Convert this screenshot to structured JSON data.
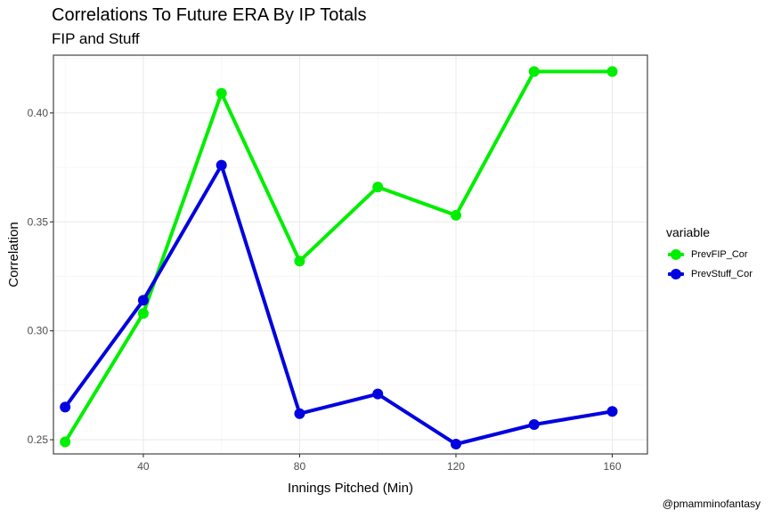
{
  "title": "Correlations To Future ERA By IP Totals",
  "subtitle": "FIP and Stuff",
  "caption": "@pmamminofantasy",
  "chart_data": {
    "type": "line",
    "title": "Correlations To Future ERA By IP Totals",
    "subtitle": "FIP and Stuff",
    "xlabel": "Innings Pitched (Min)",
    "ylabel": "Correlation",
    "x": [
      20,
      40,
      60,
      80,
      100,
      120,
      140,
      160
    ],
    "xlim": [
      17,
      169
    ],
    "ylim": [
      0.2435,
      0.4265
    ],
    "xticks": [
      40,
      80,
      120,
      160
    ],
    "yticks": [
      0.25,
      0.3,
      0.35,
      0.4
    ],
    "ytick_labels": [
      "0.25",
      "0.30",
      "0.35",
      "0.40"
    ],
    "grid": true,
    "legend": {
      "title": "variable",
      "placement": "right"
    },
    "series": [
      {
        "name": "PrevFIP_Cor",
        "color": "#00ee00",
        "values": [
          0.249,
          0.308,
          0.409,
          0.332,
          0.366,
          0.353,
          0.419,
          0.419
        ]
      },
      {
        "name": "PrevStuff_Cor",
        "color": "#0000e0",
        "values": [
          0.265,
          0.314,
          0.376,
          0.262,
          0.271,
          0.248,
          0.257,
          0.263
        ]
      }
    ]
  }
}
